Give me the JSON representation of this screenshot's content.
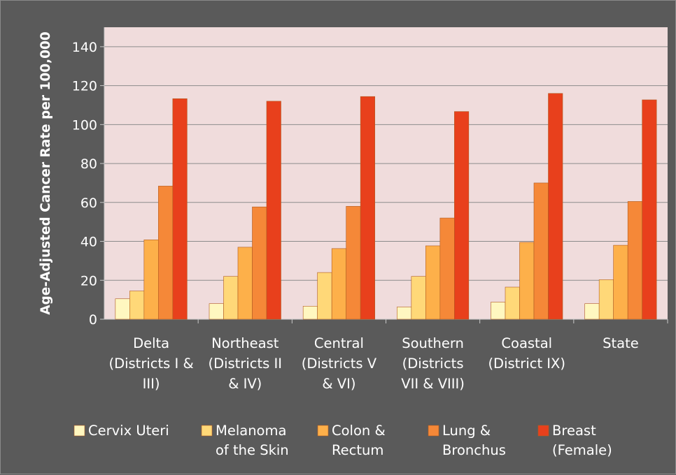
{
  "chart_data": {
    "type": "bar",
    "ylabel": "Age-Adjusted Cancer Rate per 100,000",
    "ylim": [
      0,
      150
    ],
    "yticks": [
      0,
      20,
      40,
      60,
      80,
      100,
      120,
      140
    ],
    "grid": true,
    "legend_position": "bottom",
    "categories": [
      [
        "Delta",
        "(Districts I &",
        "III)"
      ],
      [
        "Northeast",
        "(Districts II",
        "& IV)"
      ],
      [
        "Central",
        "(Districts V",
        "& VI)"
      ],
      [
        "Southern",
        "(Districts",
        "VII & VIII)"
      ],
      [
        "Coastal",
        "(District IX)"
      ],
      [
        "State"
      ]
    ],
    "series": [
      {
        "name": [
          "Cervix Uteri"
        ],
        "color": "#fff7c0",
        "values": [
          10.5,
          8.0,
          6.7,
          6.3,
          8.8,
          8.0
        ]
      },
      {
        "name": [
          "Melanoma",
          "of the Skin"
        ],
        "color": "#ffd878",
        "values": [
          14.5,
          22.0,
          24.0,
          22.0,
          16.5,
          20.3
        ]
      },
      {
        "name": [
          "Colon &",
          "Rectum"
        ],
        "color": "#fdb04a",
        "values": [
          40.8,
          37.0,
          36.3,
          37.7,
          39.5,
          38.0
        ]
      },
      {
        "name": [
          "Lung &",
          "Bronchus"
        ],
        "color": "#f58838",
        "values": [
          68.4,
          57.7,
          58.0,
          52.0,
          70.0,
          60.5
        ]
      },
      {
        "name": [
          "Breast",
          "(Female)"
        ],
        "color": "#e8401c",
        "values": [
          113.3,
          112.0,
          114.4,
          106.7,
          116.0,
          112.7
        ]
      }
    ]
  }
}
